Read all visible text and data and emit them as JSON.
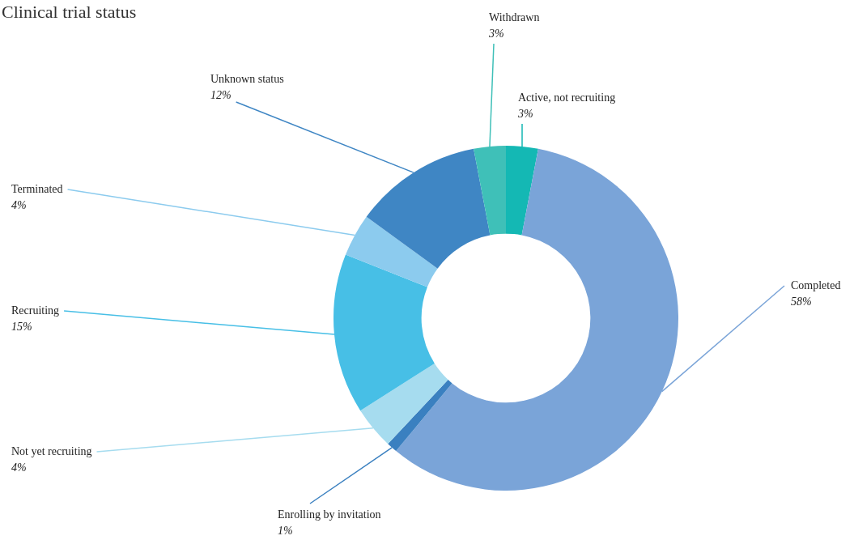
{
  "chart_data": {
    "type": "donut",
    "title": "Clinical trial status",
    "categories": [
      "Active, not recruiting",
      "Completed",
      "Enrolling by invitation",
      "Not yet recruiting",
      "Recruiting",
      "Terminated",
      "Unknown status",
      "Withdrawn"
    ],
    "values": [
      3,
      58,
      1,
      4,
      15,
      4,
      12,
      3
    ],
    "colors": [
      "#14b8b4",
      "#7aa4d8",
      "#3a80c0",
      "#a6dcef",
      "#47bfe6",
      "#8ccbee",
      "#3f86c4",
      "#3fc0b8"
    ],
    "value_labels": [
      "3%",
      "58%",
      "1%",
      "4%",
      "15%",
      "4%",
      "12%",
      "3%"
    ],
    "legend": false
  }
}
